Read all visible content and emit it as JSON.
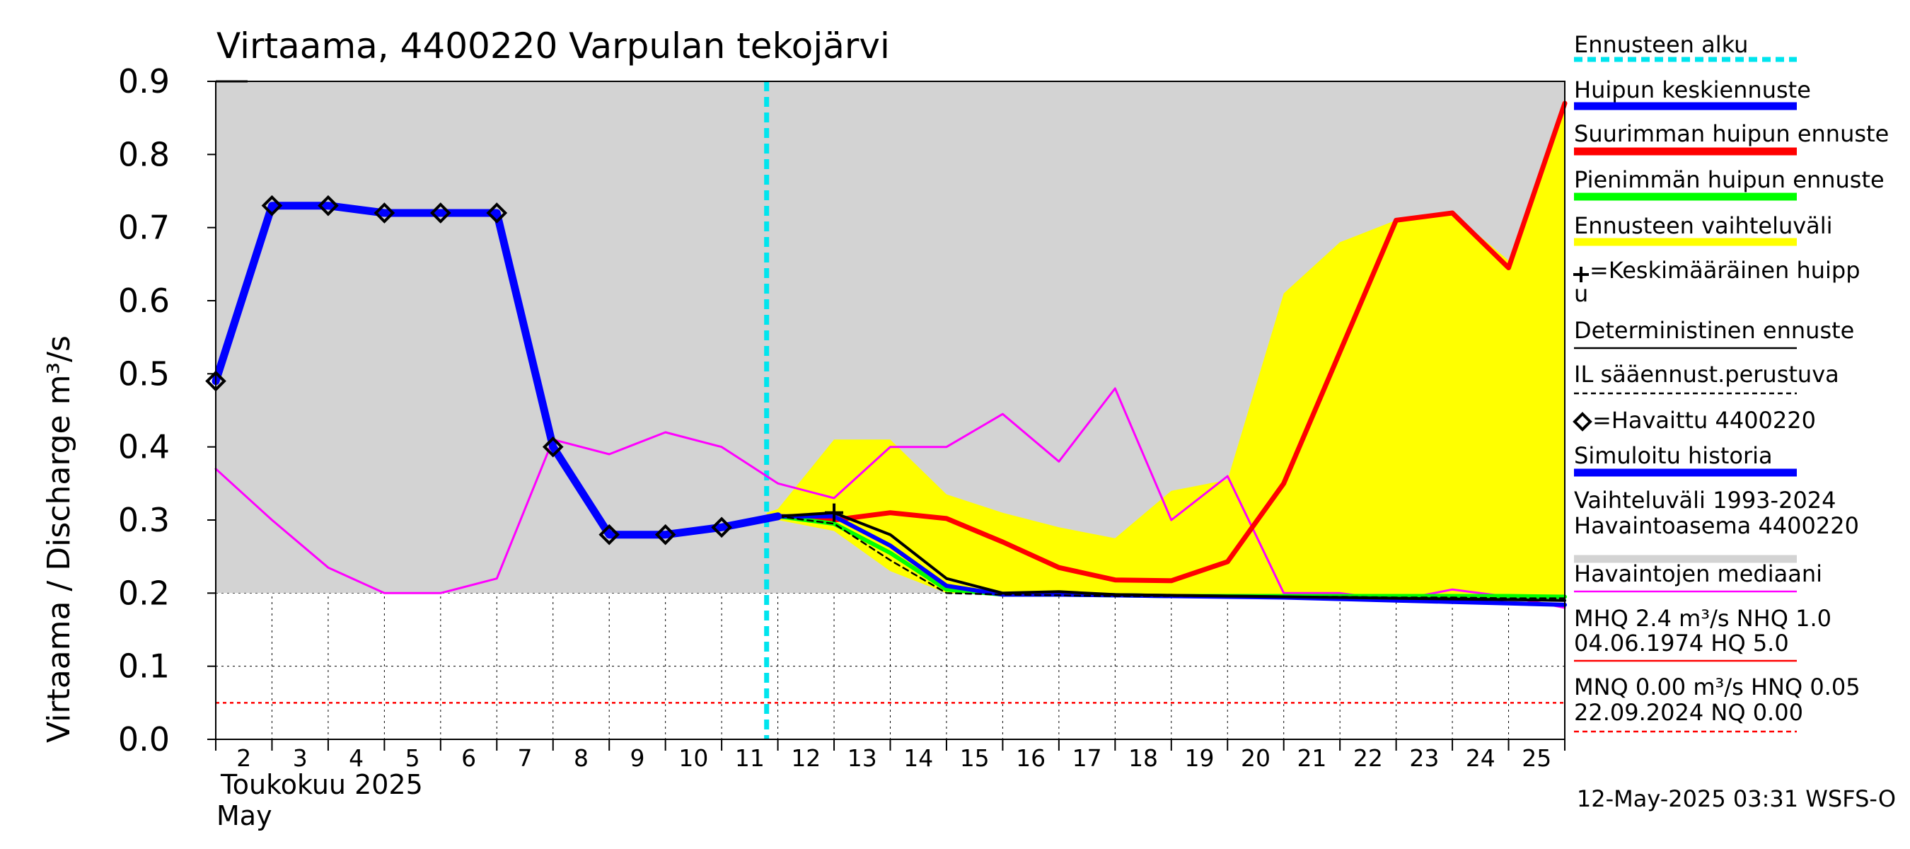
{
  "chart_data": {
    "type": "line",
    "title": "Virtaama, 4400220 Varpulan tekojärvi",
    "ylabel": "Virtaama / Discharge    m³/s",
    "ylim": [
      0,
      0.9
    ],
    "yticks": [
      "0.0",
      "0.1",
      "0.2",
      "0.3",
      "0.4",
      "0.5",
      "0.6",
      "0.7",
      "0.8",
      "0.9"
    ],
    "x_day_start": 2,
    "x_day_end": 26,
    "xtick_labels": [
      "2",
      "3",
      "4",
      "5",
      "6",
      "7",
      "8",
      "9",
      "10",
      "11",
      "12",
      "13",
      "14",
      "15",
      "16",
      "17",
      "18",
      "19",
      "20",
      "21",
      "22",
      "23",
      "24",
      "25"
    ],
    "month_label_fi": "Toukokuu  2025",
    "month_label_en": "May",
    "footer": "12-May-2025 03:31 WSFS-O",
    "forecast_start_day": 11.8,
    "grid": true,
    "legend_position": "right",
    "series": [
      {
        "name": "Vaihteluväli 1993-2024\n Havaintoasema 4400220",
        "role": "hist_range",
        "color": "#d3d3d3",
        "upper": [
          [
            2,
            0.9
          ],
          [
            26,
            0.9
          ]
        ],
        "lower": [
          [
            2,
            0.2
          ],
          [
            26,
            0.2
          ]
        ]
      },
      {
        "name": "Ennusteen vaihteluväli",
        "role": "forecast_range",
        "color": "#ffff00",
        "upper": [
          [
            11.8,
            0.31
          ],
          [
            12,
            0.315
          ],
          [
            13,
            0.41
          ],
          [
            14,
            0.41
          ],
          [
            15,
            0.335
          ],
          [
            16,
            0.31
          ],
          [
            17,
            0.29
          ],
          [
            18,
            0.275
          ],
          [
            19,
            0.34
          ],
          [
            20,
            0.355
          ],
          [
            21,
            0.61
          ],
          [
            22,
            0.68
          ],
          [
            23,
            0.71
          ],
          [
            24,
            0.72
          ],
          [
            25,
            0.655
          ],
          [
            26,
            0.87
          ]
        ],
        "lower": [
          [
            11.8,
            0.305
          ],
          [
            12,
            0.3
          ],
          [
            13,
            0.285
          ],
          [
            14,
            0.23
          ],
          [
            15,
            0.2
          ],
          [
            16,
            0.198
          ],
          [
            17,
            0.198
          ],
          [
            18,
            0.197
          ],
          [
            19,
            0.196
          ],
          [
            20,
            0.196
          ],
          [
            21,
            0.196
          ],
          [
            22,
            0.196
          ],
          [
            23,
            0.196
          ],
          [
            24,
            0.196
          ],
          [
            25,
            0.196
          ],
          [
            26,
            0.196
          ]
        ]
      },
      {
        "name": "Havaintojen mediaani",
        "role": "median",
        "color": "#ff00ff",
        "width": 3,
        "points": [
          [
            2,
            0.37
          ],
          [
            3,
            0.3
          ],
          [
            4,
            0.235
          ],
          [
            5,
            0.2
          ],
          [
            6,
            0.2
          ],
          [
            7,
            0.22
          ],
          [
            8,
            0.41
          ],
          [
            9,
            0.39
          ],
          [
            10,
            0.42
          ],
          [
            11,
            0.4
          ],
          [
            12,
            0.35
          ],
          [
            13,
            0.33
          ],
          [
            14,
            0.4
          ],
          [
            15,
            0.4
          ],
          [
            16,
            0.445
          ],
          [
            17,
            0.38
          ],
          [
            18,
            0.48
          ],
          [
            19,
            0.3
          ],
          [
            20,
            0.36
          ],
          [
            21,
            0.2
          ],
          [
            22,
            0.2
          ],
          [
            23,
            0.19
          ],
          [
            24,
            0.205
          ],
          [
            25,
            0.195
          ],
          [
            26,
            0.18
          ]
        ]
      },
      {
        "name": "Suurimman huipun ennuste",
        "role": "max_peak",
        "color": "#ff0000",
        "width": 7,
        "points": [
          [
            12,
            0.305
          ],
          [
            13,
            0.3
          ],
          [
            14,
            0.31
          ],
          [
            15,
            0.302
          ],
          [
            16,
            0.27
          ],
          [
            17,
            0.235
          ],
          [
            18,
            0.218
          ],
          [
            19,
            0.217
          ],
          [
            20,
            0.243
          ],
          [
            21,
            0.35
          ],
          [
            22,
            0.53
          ],
          [
            23,
            0.71
          ],
          [
            24,
            0.72
          ],
          [
            25,
            0.645
          ],
          [
            26,
            0.87
          ]
        ]
      },
      {
        "name": "Pienimmän huipun ennuste",
        "role": "min_peak",
        "color": "#00ff00",
        "width": 6,
        "points": [
          [
            12,
            0.305
          ],
          [
            13,
            0.295
          ],
          [
            14,
            0.255
          ],
          [
            15,
            0.205
          ],
          [
            16,
            0.198
          ],
          [
            17,
            0.198
          ],
          [
            18,
            0.197
          ],
          [
            19,
            0.196
          ],
          [
            20,
            0.196
          ],
          [
            21,
            0.196
          ],
          [
            22,
            0.196
          ],
          [
            23,
            0.196
          ],
          [
            24,
            0.196
          ],
          [
            25,
            0.196
          ],
          [
            26,
            0.195
          ]
        ]
      },
      {
        "name": "Huipun keskiennuste",
        "role": "mean_peak",
        "color": "#0000ff",
        "width": 6,
        "points": [
          [
            12,
            0.305
          ],
          [
            13,
            0.305
          ],
          [
            14,
            0.265
          ],
          [
            15,
            0.21
          ],
          [
            16,
            0.198
          ],
          [
            17,
            0.198
          ],
          [
            18,
            0.197
          ],
          [
            19,
            0.196
          ],
          [
            20,
            0.195
          ],
          [
            21,
            0.194
          ],
          [
            22,
            0.192
          ],
          [
            23,
            0.19
          ],
          [
            24,
            0.188
          ],
          [
            25,
            0.186
          ],
          [
            26,
            0.184
          ]
        ]
      },
      {
        "name": "Deterministinen ennuste",
        "role": "deterministic",
        "color": "#000000",
        "width": 4,
        "points": [
          [
            12,
            0.305
          ],
          [
            13,
            0.31
          ],
          [
            14,
            0.28
          ],
          [
            15,
            0.22
          ],
          [
            16,
            0.2
          ],
          [
            17,
            0.202
          ],
          [
            18,
            0.198
          ],
          [
            19,
            0.197
          ],
          [
            20,
            0.196
          ],
          [
            21,
            0.195
          ],
          [
            22,
            0.194
          ],
          [
            23,
            0.193
          ],
          [
            24,
            0.192
          ],
          [
            25,
            0.191
          ],
          [
            26,
            0.19
          ]
        ]
      },
      {
        "name": "IL sääennust.perustuva",
        "role": "il_forecast",
        "color": "#000000",
        "width": 2.5,
        "dash": "8,6",
        "points": [
          [
            12,
            0.305
          ],
          [
            13,
            0.295
          ],
          [
            14,
            0.245
          ],
          [
            15,
            0.2
          ],
          [
            16,
            0.198
          ],
          [
            17,
            0.197
          ],
          [
            18,
            0.196
          ],
          [
            19,
            0.196
          ],
          [
            20,
            0.196
          ],
          [
            21,
            0.195
          ],
          [
            22,
            0.195
          ],
          [
            23,
            0.194
          ],
          [
            24,
            0.194
          ],
          [
            25,
            0.193
          ],
          [
            26,
            0.193
          ]
        ]
      },
      {
        "name": "Simuloitu historia",
        "role": "simulated",
        "color": "#0000ff",
        "width": 11,
        "points": [
          [
            2,
            0.49
          ],
          [
            3,
            0.73
          ],
          [
            4,
            0.73
          ],
          [
            5,
            0.72
          ],
          [
            6,
            0.72
          ],
          [
            7,
            0.72
          ],
          [
            8,
            0.4
          ],
          [
            9,
            0.28
          ],
          [
            10,
            0.28
          ],
          [
            11,
            0.29
          ],
          [
            12,
            0.305
          ]
        ]
      },
      {
        "name": "=Havaittu 4400220",
        "role": "observed",
        "color": "#000000",
        "points": [
          [
            2,
            0.49
          ],
          [
            3,
            0.73
          ],
          [
            4,
            0.73
          ],
          [
            5,
            0.72
          ],
          [
            6,
            0.72
          ],
          [
            7,
            0.72
          ],
          [
            8,
            0.4
          ],
          [
            9,
            0.28
          ],
          [
            10,
            0.28
          ],
          [
            11,
            0.29
          ]
        ]
      },
      {
        "name": "+=Keskimääräinen huippu",
        "role": "mean_peak_marker",
        "color": "#000000",
        "points": [
          [
            13,
            0.31
          ]
        ]
      }
    ],
    "reference_lines": [
      {
        "value": 0.05,
        "color": "#ff0000",
        "dash": "5,5",
        "width": 2.5,
        "label": "MNQ 0.00 m³/s HNQ 0.05"
      }
    ],
    "legend": [
      {
        "label": "Ennusteen alku",
        "color": "#00e5ee",
        "style": "dashed-thick"
      },
      {
        "label": "Huipun keskiennuste",
        "color": "#0000ff",
        "style": "thick"
      },
      {
        "label": "Suurimman huipun ennuste",
        "color": "#ff0000",
        "style": "thick"
      },
      {
        "label": "Pienimmän huipun ennuste",
        "color": "#00ff00",
        "style": "thick"
      },
      {
        "label": "Ennusteen vaihteluväli",
        "color": "#ffff00",
        "style": "thick"
      },
      {
        "label": "=Keskimääräinen huipp",
        "label2": "u",
        "color": "#000000",
        "style": "none",
        "marker": "plus"
      },
      {
        "label": "Deterministinen ennuste",
        "color": "#000000",
        "style": "thin"
      },
      {
        "label": "IL sääennust.perustuva",
        "color": "#000000",
        "style": "dashed"
      },
      {
        "label": "=Havaittu 4400220",
        "color": "#000000",
        "style": "none",
        "marker": "diamond"
      },
      {
        "label": "Simuloitu historia",
        "color": "#0000ff",
        "style": "thick"
      },
      {
        "label": "Vaihteluväli 1993-2024",
        "label2": " Havaintoasema 4400220",
        "color": "#d3d3d3",
        "style": "thick"
      },
      {
        "label": "Havaintojen mediaani",
        "color": "#ff00ff",
        "style": "thin"
      },
      {
        "label": "MHQ  2.4 m³/s NHQ  1.0",
        "label2": "04.06.1974 HQ  5.0",
        "color": "#ff0000",
        "style": "thin"
      },
      {
        "label": "MNQ 0.00 m³/s HNQ 0.05",
        "label2": "22.09.2024 NQ 0.00",
        "color": "#ff0000",
        "style": "dashed"
      }
    ]
  }
}
